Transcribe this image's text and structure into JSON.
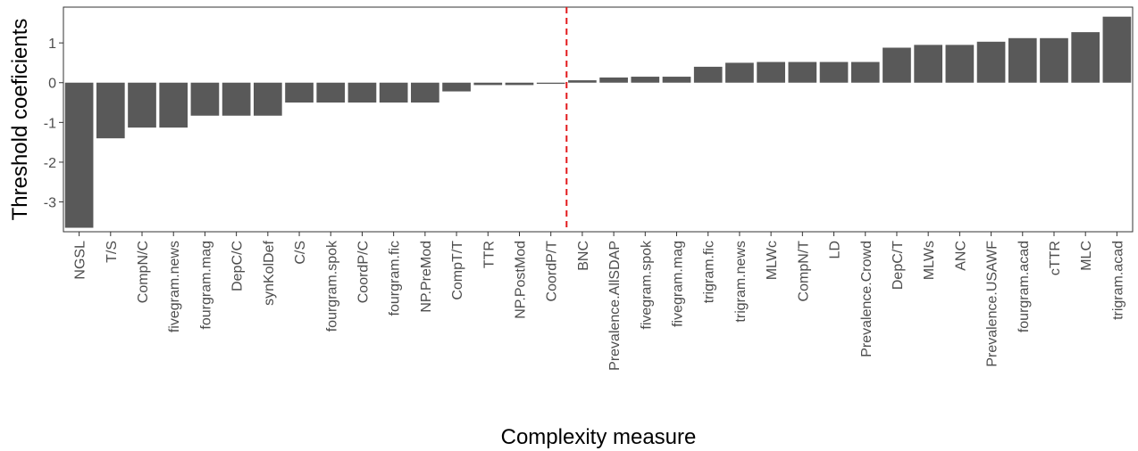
{
  "chart_data": {
    "type": "bar",
    "xlabel": "Complexity measure",
    "ylabel": "Threshold coeficients",
    "ylim": [
      -3.75,
      1.9
    ],
    "yticks": [
      -3,
      -2,
      -1,
      0,
      1
    ],
    "ytick_labels": [
      "-3",
      "-2",
      "-1",
      "0",
      "1"
    ],
    "grid": false,
    "legend": "none",
    "categories": [
      "NGSL",
      "T/S",
      "CompN/C",
      "fivegram.news",
      "fourgram.mag",
      "DepC/C",
      "synKolDef",
      "C/S",
      "fourgram.spok",
      "CoordP/C",
      "fourgram.fic",
      "NP.PreMod",
      "CompT/T",
      "TTR",
      "NP.PostMod",
      "CoordP/T",
      "BNC",
      "Prevalence.AllSDAP",
      "fivegram.spok",
      "fivegram.mag",
      "trigram.fic",
      "trigram.news",
      "MLWc",
      "CompN/T",
      "LD",
      "Prevalence.Crowd",
      "DepC/T",
      "MLWs",
      "ANC",
      "Prevalence.USAWF",
      "fourgram.acad",
      "cTTR",
      "MLC",
      "trigram.acad"
    ],
    "values": [
      -3.65,
      -1.4,
      -1.13,
      -1.13,
      -0.83,
      -0.83,
      -0.83,
      -0.5,
      -0.5,
      -0.5,
      -0.5,
      -0.5,
      -0.22,
      -0.06,
      -0.06,
      -0.03,
      0.06,
      0.13,
      0.15,
      0.15,
      0.4,
      0.5,
      0.52,
      0.52,
      0.52,
      0.52,
      0.88,
      0.95,
      0.95,
      1.03,
      1.12,
      1.12,
      1.27,
      1.66
    ],
    "threshold_line": {
      "after_category": "CoordP/T",
      "color": "#e31a1c",
      "style": "dashed"
    },
    "bar_color": "#595959"
  }
}
